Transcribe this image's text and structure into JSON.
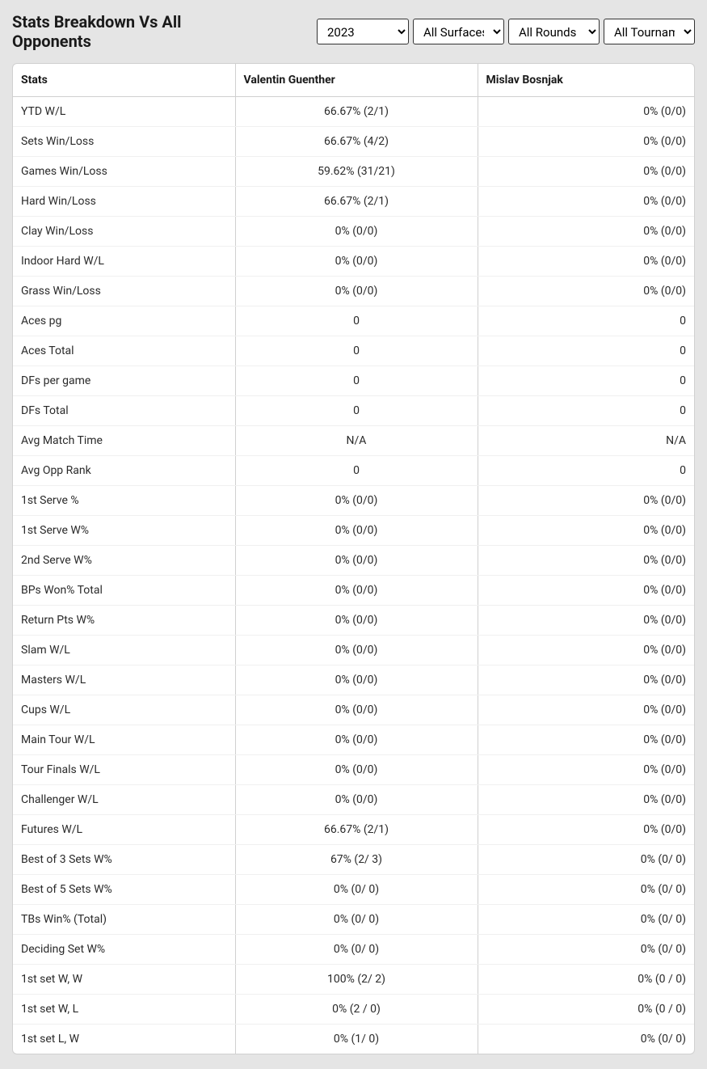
{
  "title": "Stats Breakdown Vs All Opponents",
  "filters": {
    "year": "2023",
    "surface": "All Surfaces",
    "rounds": "All Rounds",
    "tournament": "All Tournaments"
  },
  "table": {
    "columns": [
      "Stats",
      "Valentin Guenther",
      "Mislav Bosnjak"
    ],
    "rows": [
      [
        "YTD W/L",
        "66.67% (2/1)",
        "0% (0/0)"
      ],
      [
        "Sets Win/Loss",
        "66.67% (4/2)",
        "0% (0/0)"
      ],
      [
        "Games Win/Loss",
        "59.62% (31/21)",
        "0% (0/0)"
      ],
      [
        "Hard Win/Loss",
        "66.67% (2/1)",
        "0% (0/0)"
      ],
      [
        "Clay Win/Loss",
        "0% (0/0)",
        "0% (0/0)"
      ],
      [
        "Indoor Hard W/L",
        "0% (0/0)",
        "0% (0/0)"
      ],
      [
        "Grass Win/Loss",
        "0% (0/0)",
        "0% (0/0)"
      ],
      [
        "Aces pg",
        "0",
        "0"
      ],
      [
        "Aces Total",
        "0",
        "0"
      ],
      [
        "DFs per game",
        "0",
        "0"
      ],
      [
        "DFs Total",
        "0",
        "0"
      ],
      [
        "Avg Match Time",
        "N/A",
        "N/A"
      ],
      [
        "Avg Opp Rank",
        "0",
        "0"
      ],
      [
        "1st Serve %",
        "0% (0/0)",
        "0% (0/0)"
      ],
      [
        "1st Serve W%",
        "0% (0/0)",
        "0% (0/0)"
      ],
      [
        "2nd Serve W%",
        "0% (0/0)",
        "0% (0/0)"
      ],
      [
        "BPs Won% Total",
        "0% (0/0)",
        "0% (0/0)"
      ],
      [
        "Return Pts W%",
        "0% (0/0)",
        "0% (0/0)"
      ],
      [
        "Slam W/L",
        "0% (0/0)",
        "0% (0/0)"
      ],
      [
        "Masters W/L",
        "0% (0/0)",
        "0% (0/0)"
      ],
      [
        "Cups W/L",
        "0% (0/0)",
        "0% (0/0)"
      ],
      [
        "Main Tour W/L",
        "0% (0/0)",
        "0% (0/0)"
      ],
      [
        "Tour Finals W/L",
        "0% (0/0)",
        "0% (0/0)"
      ],
      [
        "Challenger W/L",
        "0% (0/0)",
        "0% (0/0)"
      ],
      [
        "Futures W/L",
        "66.67% (2/1)",
        "0% (0/0)"
      ],
      [
        "Best of 3 Sets W%",
        "67% (2/ 3)",
        "0% (0/ 0)"
      ],
      [
        "Best of 5 Sets W%",
        "0% (0/ 0)",
        "0% (0/ 0)"
      ],
      [
        "TBs Win% (Total)",
        "0% (0/ 0)",
        "0% (0/ 0)"
      ],
      [
        "Deciding Set W%",
        "0% (0/ 0)",
        "0% (0/ 0)"
      ],
      [
        "1st set W, W",
        "100% (2/ 2)",
        "0% (0 / 0)"
      ],
      [
        "1st set W, L",
        "0% (2 / 0)",
        "0% (0 / 0)"
      ],
      [
        "1st set L, W",
        "0% (1/ 0)",
        "0% (0/ 0)"
      ]
    ]
  }
}
